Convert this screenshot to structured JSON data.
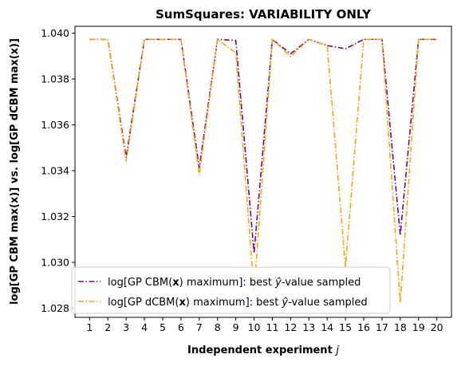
{
  "chart_data": {
    "type": "line",
    "title": "SumSquares: VARIABILITY ONLY",
    "xlabel": "Independent experiment",
    "xlabel_var": "j",
    "ylabel": "log[GP CBM max(x)] vs. log[GP dCBM max(x)]",
    "x": [
      1,
      2,
      3,
      4,
      5,
      6,
      7,
      8,
      9,
      10,
      11,
      12,
      13,
      14,
      15,
      16,
      17,
      18,
      19,
      20
    ],
    "x_ticks": [
      "1",
      "2",
      "3",
      "4",
      "5",
      "6",
      "7",
      "8",
      "9",
      "10",
      "11",
      "12",
      "13",
      "14",
      "15",
      "16",
      "17",
      "18",
      "19",
      "20"
    ],
    "ylim": [
      1.0276,
      1.0403
    ],
    "y_ticks": [
      "1.028",
      "1.030",
      "1.032",
      "1.034",
      "1.036",
      "1.038",
      "1.040"
    ],
    "y_tick_values": [
      1.028,
      1.03,
      1.032,
      1.034,
      1.036,
      1.038,
      1.04
    ],
    "legend_position": "lower-left",
    "series": [
      {
        "name": "log[GP CBM(x) maximum]: best ŷ-value sampled",
        "legend_prefix": "log[GP CBM(",
        "legend_bold": "x",
        "legend_mid": ") maximum]: best ",
        "legend_hat": "ŷ",
        "legend_suffix": "-value sampled",
        "color": "#800080",
        "values": [
          1.03973,
          1.03973,
          1.03458,
          1.03973,
          1.03973,
          1.03973,
          1.03412,
          1.03973,
          1.03968,
          1.0304,
          1.03973,
          1.0391,
          1.03973,
          1.03946,
          1.03932,
          1.03973,
          1.03973,
          1.03118,
          1.03973,
          1.03973
        ]
      },
      {
        "name": "log[GP dCBM(x) maximum]: best ŷ-value sampled",
        "legend_prefix": "log[GP dCBM(",
        "legend_bold": "x",
        "legend_mid": ") maximum]: best ",
        "legend_hat": "ŷ",
        "legend_suffix": "-value sampled",
        "color": "#FFA500",
        "values": [
          1.03973,
          1.03973,
          1.0344,
          1.03973,
          1.03973,
          1.03973,
          1.0338,
          1.03973,
          1.03914,
          1.0287,
          1.03973,
          1.03898,
          1.03973,
          1.03946,
          1.0298,
          1.03973,
          1.03973,
          1.02824,
          1.03973,
          1.03973
        ]
      }
    ]
  }
}
